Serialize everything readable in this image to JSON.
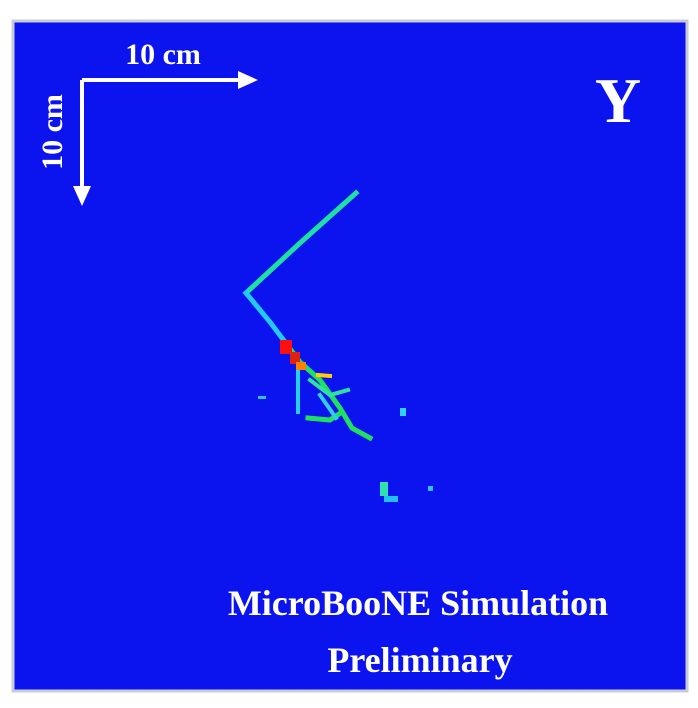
{
  "axis_labels": {
    "horizontal": "10 cm",
    "vertical": "10 cm"
  },
  "view": "Y",
  "caption": {
    "line1": "MicroBooNE Simulation",
    "line2": "Preliminary"
  }
}
